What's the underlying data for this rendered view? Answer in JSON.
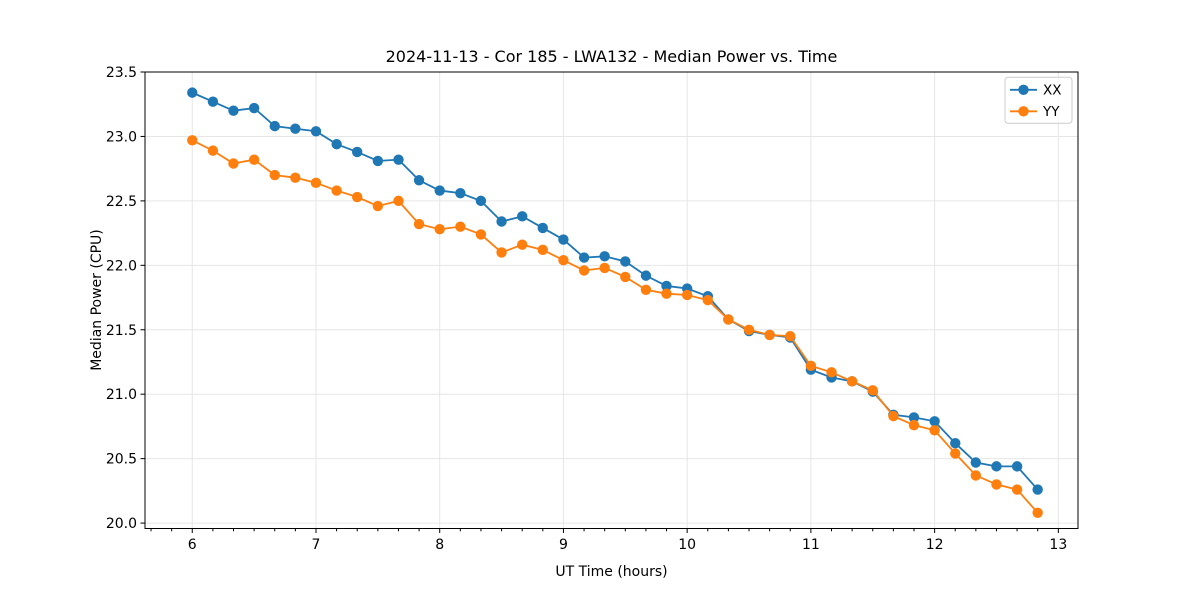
{
  "chart_data": {
    "type": "line",
    "title": "2024-11-13 - Cor 185 - LWA132 - Median Power vs. Time",
    "xlabel": "UT Time (hours)",
    "ylabel": "Median Power (CPU)",
    "xlim": [
      5.618,
      13.159
    ],
    "ylim": [
      19.958,
      23.5
    ],
    "x_ticks": [
      6,
      7,
      8,
      9,
      10,
      11,
      12,
      13
    ],
    "x_tick_labels": [
      "6",
      "7",
      "8",
      "9",
      "10",
      "11",
      "12",
      "13"
    ],
    "x_minor_step": 0.16667,
    "y_ticks": [
      20.0,
      20.5,
      21.0,
      21.5,
      22.0,
      22.5,
      23.0,
      23.5
    ],
    "y_tick_labels": [
      "20.0",
      "20.5",
      "21.0",
      "21.5",
      "22.0",
      "22.5",
      "23.0",
      "23.5"
    ],
    "grid": true,
    "grid_color": "#e6e6e6",
    "spine_color": "#000000",
    "legend_position": "upper right",
    "x": [
      6.0,
      6.167,
      6.333,
      6.5,
      6.667,
      6.833,
      7.0,
      7.167,
      7.333,
      7.5,
      7.667,
      7.833,
      8.0,
      8.167,
      8.333,
      8.5,
      8.667,
      8.833,
      9.0,
      9.167,
      9.333,
      9.5,
      9.667,
      9.833,
      10.0,
      10.167,
      10.333,
      10.5,
      10.667,
      10.833,
      11.0,
      11.167,
      11.333,
      11.5,
      11.667,
      11.833,
      12.0,
      12.167,
      12.333,
      12.5,
      12.667,
      12.833
    ],
    "series": [
      {
        "name": "XX",
        "color": "#1f77b4",
        "values": [
          23.34,
          23.27,
          23.2,
          23.22,
          23.08,
          23.06,
          23.04,
          22.94,
          22.88,
          22.81,
          22.82,
          22.66,
          22.58,
          22.56,
          22.5,
          22.34,
          22.38,
          22.29,
          22.2,
          22.06,
          22.07,
          22.03,
          21.92,
          21.84,
          21.82,
          21.76,
          21.58,
          21.49,
          21.46,
          21.44,
          21.19,
          21.13,
          21.1,
          21.02,
          20.84,
          20.82,
          20.79,
          20.62,
          20.47,
          20.44,
          20.44,
          20.26
        ]
      },
      {
        "name": "YY",
        "color": "#ff7f0e",
        "values": [
          22.97,
          22.89,
          22.79,
          22.82,
          22.7,
          22.68,
          22.64,
          22.58,
          22.53,
          22.46,
          22.5,
          22.32,
          22.28,
          22.3,
          22.24,
          22.1,
          22.16,
          22.12,
          22.04,
          21.96,
          21.98,
          21.91,
          21.81,
          21.78,
          21.77,
          21.73,
          21.58,
          21.5,
          21.46,
          21.45,
          21.22,
          21.17,
          21.1,
          21.03,
          20.83,
          20.76,
          20.72,
          20.54,
          20.37,
          20.3,
          20.26,
          20.08
        ]
      }
    ]
  }
}
